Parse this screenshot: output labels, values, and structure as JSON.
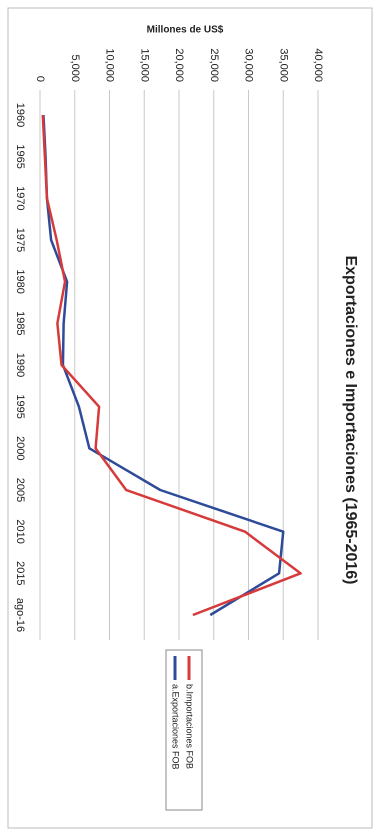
{
  "chart_data": {
    "type": "line",
    "title": "Exportaciones e Importaciones (1965-2016)",
    "y_label": "Millones de US$",
    "categories": [
      "1960",
      "1965",
      "1970",
      "1975",
      "1980",
      "1985",
      "1990",
      "1995",
      "2000",
      "2005",
      "2010",
      "2015",
      "ago-16"
    ],
    "series": [
      {
        "name": "a.Exportaciones FOB",
        "color": "#2e4b9a",
        "values": [
          500,
          800,
          1000,
          1600,
          3900,
          3400,
          3300,
          5600,
          7100,
          17300,
          35000,
          34400,
          24500
        ]
      },
      {
        "name": "b.Importaciones FOB",
        "color": "#d63a3a",
        "values": [
          400,
          700,
          1000,
          2400,
          3600,
          2500,
          3100,
          8500,
          8000,
          12400,
          29500,
          37500,
          22000
        ]
      }
    ],
    "ylim": [
      0,
      40000
    ],
    "yticks": [
      0,
      {
        "value": 5000,
        "label": "5,000"
      },
      {
        "value": 10000,
        "label": "10,000"
      },
      {
        "value": 15000,
        "label": "15,000"
      },
      {
        "value": 20000,
        "label": "20,000"
      },
      {
        "value": 25000,
        "label": "25,000"
      },
      {
        "value": 30000,
        "label": "30,000"
      },
      {
        "value": 35000,
        "label": "35,000"
      },
      {
        "value": 40000,
        "label": "40,000"
      }
    ],
    "grid": true
  }
}
